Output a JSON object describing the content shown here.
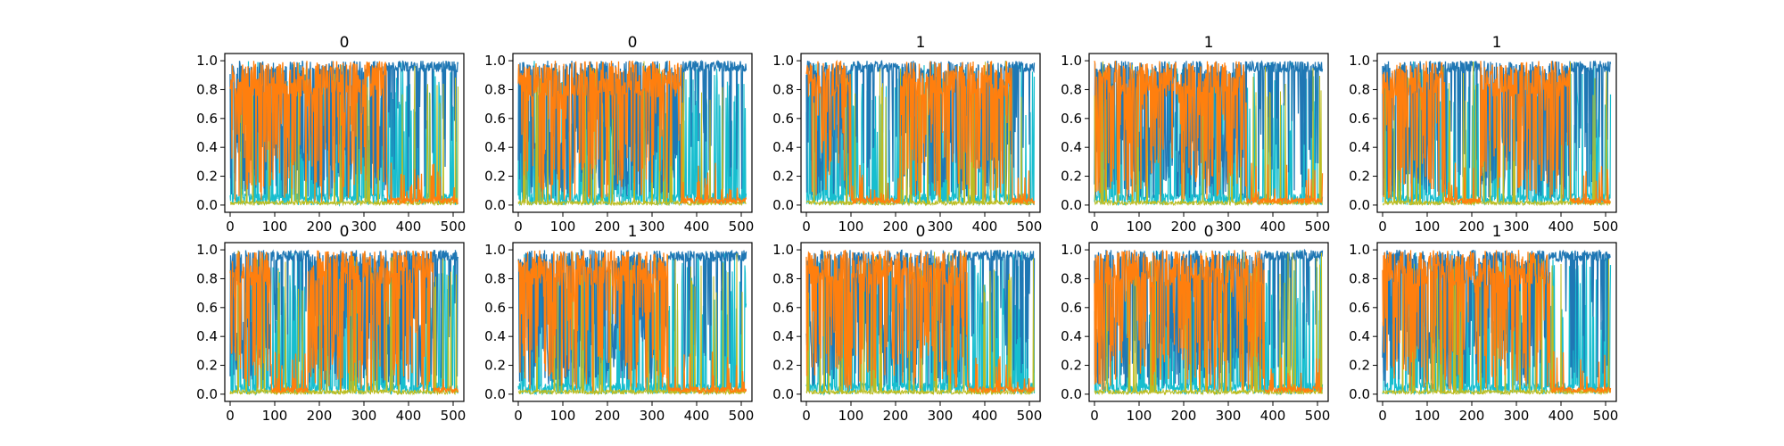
{
  "chart_data": {
    "type": "line",
    "layout": "2x5 grid of subplots",
    "shared": {
      "xlim": [
        -12,
        524
      ],
      "ylim": [
        -0.05,
        1.05
      ],
      "xticks": [
        0,
        100,
        200,
        300,
        400,
        500
      ],
      "yticks": [
        0.0,
        0.2,
        0.4,
        0.6,
        0.8,
        1.0
      ],
      "ytick_labels": [
        "0.0",
        "0.2",
        "0.4",
        "0.6",
        "0.8",
        "1.0"
      ],
      "series_colors": {
        "blue": "#1f77b4",
        "orange": "#ff7f0e",
        "cyan": "#17becf",
        "olive": "#bcbd22",
        "green": "#2ca02c",
        "pink": "#e377c2"
      },
      "n_points": 512,
      "description": "Per-class probability traces over positions; orange dominates in segments, blue dominates elsewhere."
    },
    "panels": [
      {
        "title": "0",
        "orange_segments": [
          [
            0,
            350
          ]
        ],
        "seed": 11
      },
      {
        "title": "0",
        "orange_segments": [
          [
            0,
            365
          ]
        ],
        "seed": 23
      },
      {
        "title": "1",
        "orange_segments": [
          [
            0,
            100
          ],
          [
            210,
            460
          ]
        ],
        "seed": 37
      },
      {
        "title": "1",
        "orange_segments": [
          [
            0,
            340
          ]
        ],
        "seed": 41
      },
      {
        "title": "1",
        "orange_segments": [
          [
            0,
            140
          ],
          [
            220,
            420
          ]
        ],
        "seed": 53
      },
      {
        "title": "0",
        "orange_segments": [
          [
            0,
            90
          ],
          [
            175,
            455
          ]
        ],
        "seed": 67
      },
      {
        "title": "1",
        "orange_segments": [
          [
            0,
            335
          ]
        ],
        "seed": 71
      },
      {
        "title": "0",
        "orange_segments": [
          [
            0,
            360
          ]
        ],
        "seed": 83
      },
      {
        "title": "0",
        "orange_segments": [
          [
            0,
            380
          ]
        ],
        "seed": 97
      },
      {
        "title": "1",
        "orange_segments": [
          [
            0,
            375
          ]
        ],
        "seed": 101
      }
    ]
  }
}
